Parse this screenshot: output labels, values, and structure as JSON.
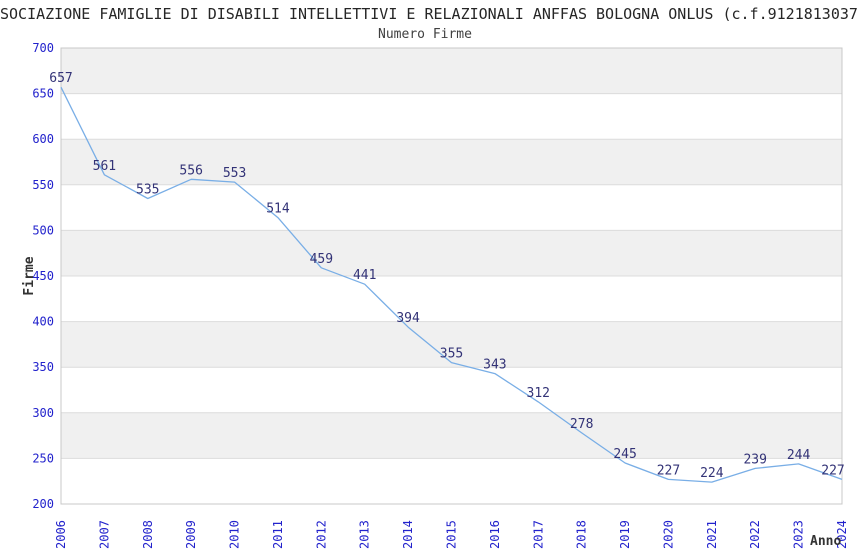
{
  "header": {
    "title": "SOCIAZIONE FAMIGLIE DI DISABILI INTELLETTIVI E RELAZIONALI ANFFAS BOLOGNA ONLUS (c.f.9121813037",
    "subtitle": "Numero Firme"
  },
  "chart_data": {
    "type": "line",
    "title": "Numero Firme",
    "xlabel": "Anno",
    "ylabel": "Firme",
    "categories": [
      "2006",
      "2007",
      "2008",
      "2009",
      "2010",
      "2011",
      "2012",
      "2013",
      "2014",
      "2015",
      "2016",
      "2017",
      "2018",
      "2019",
      "2020",
      "2021",
      "2022",
      "2023",
      "2024"
    ],
    "values": [
      657,
      561,
      535,
      556,
      553,
      514,
      459,
      441,
      394,
      355,
      343,
      312,
      278,
      245,
      227,
      224,
      239,
      244,
      227
    ],
    "ylim": [
      200,
      700
    ],
    "ytick_step": 50,
    "grid": "horizontal-alternating-bands",
    "legend": "none",
    "point_labels_shown": true,
    "colors": {
      "line": "#79aee6",
      "point_label": "#333377",
      "tick_label": "#2222cc",
      "axis_title": "#333333",
      "band_gray": "#f0f0f0",
      "band_white": "#ffffff",
      "gridline": "#dcdcdc",
      "plot_border": "#c8c8c8",
      "title_text": "#262626",
      "subtitle_text": "#404040"
    }
  }
}
